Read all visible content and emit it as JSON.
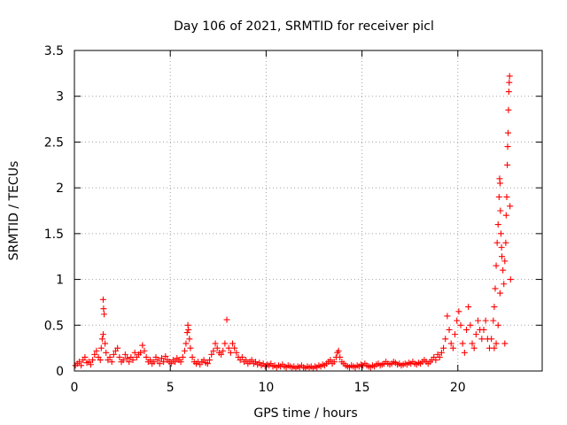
{
  "chart_data": {
    "type": "scatter",
    "title": "Day 106 of 2021, SRMTID for receiver picl",
    "xlabel": "GPS time / hours",
    "ylabel": "SRMTID / TECUs",
    "xlim": [
      0,
      24.4
    ],
    "ylim": [
      0,
      3.5
    ],
    "xticks": [
      0,
      5,
      10,
      15,
      20
    ],
    "yticks": [
      0,
      0.5,
      1,
      1.5,
      2,
      2.5,
      3,
      3.5
    ],
    "xtick_labels": [
      "0",
      "5",
      "10",
      "15",
      "20"
    ],
    "ytick_labels": [
      "0",
      "0.5",
      "1",
      "1.5",
      "2",
      "2.5",
      "3",
      "3.5"
    ],
    "grid": true,
    "marker": "+",
    "color": "#ff0000",
    "series": [
      {
        "name": "SRMTID",
        "points": [
          [
            0.05,
            0.06
          ],
          [
            0.15,
            0.08
          ],
          [
            0.25,
            0.1
          ],
          [
            0.35,
            0.06
          ],
          [
            0.45,
            0.12
          ],
          [
            0.55,
            0.15
          ],
          [
            0.65,
            0.09
          ],
          [
            0.75,
            0.1
          ],
          [
            0.85,
            0.07
          ],
          [
            0.95,
            0.12
          ],
          [
            1.05,
            0.18
          ],
          [
            1.15,
            0.22
          ],
          [
            1.25,
            0.15
          ],
          [
            1.35,
            0.12
          ],
          [
            1.4,
            0.25
          ],
          [
            1.45,
            0.35
          ],
          [
            1.5,
            0.4
          ],
          [
            1.5,
            0.78
          ],
          [
            1.52,
            0.68
          ],
          [
            1.55,
            0.62
          ],
          [
            1.6,
            0.3
          ],
          [
            1.65,
            0.2
          ],
          [
            1.75,
            0.12
          ],
          [
            1.85,
            0.15
          ],
          [
            1.95,
            0.1
          ],
          [
            2.05,
            0.18
          ],
          [
            2.15,
            0.22
          ],
          [
            2.25,
            0.25
          ],
          [
            2.35,
            0.15
          ],
          [
            2.45,
            0.1
          ],
          [
            2.55,
            0.12
          ],
          [
            2.65,
            0.18
          ],
          [
            2.75,
            0.14
          ],
          [
            2.85,
            0.1
          ],
          [
            2.95,
            0.15
          ],
          [
            3.05,
            0.12
          ],
          [
            3.15,
            0.2
          ],
          [
            3.25,
            0.15
          ],
          [
            3.35,
            0.18
          ],
          [
            3.45,
            0.2
          ],
          [
            3.55,
            0.28
          ],
          [
            3.65,
            0.22
          ],
          [
            3.75,
            0.15
          ],
          [
            3.85,
            0.1
          ],
          [
            3.95,
            0.12
          ],
          [
            4.05,
            0.08
          ],
          [
            4.15,
            0.1
          ],
          [
            4.25,
            0.15
          ],
          [
            4.35,
            0.12
          ],
          [
            4.45,
            0.08
          ],
          [
            4.55,
            0.14
          ],
          [
            4.65,
            0.1
          ],
          [
            4.75,
            0.16
          ],
          [
            4.85,
            0.12
          ],
          [
            4.95,
            0.1
          ],
          [
            5.05,
            0.08
          ],
          [
            5.15,
            0.12
          ],
          [
            5.25,
            0.1
          ],
          [
            5.35,
            0.14
          ],
          [
            5.45,
            0.12
          ],
          [
            5.55,
            0.1
          ],
          [
            5.65,
            0.15
          ],
          [
            5.75,
            0.22
          ],
          [
            5.82,
            0.3
          ],
          [
            5.88,
            0.42
          ],
          [
            5.92,
            0.5
          ],
          [
            5.95,
            0.45
          ],
          [
            6.0,
            0.35
          ],
          [
            6.05,
            0.25
          ],
          [
            6.15,
            0.15
          ],
          [
            6.25,
            0.1
          ],
          [
            6.35,
            0.08
          ],
          [
            6.45,
            0.1
          ],
          [
            6.55,
            0.07
          ],
          [
            6.65,
            0.1
          ],
          [
            6.75,
            0.12
          ],
          [
            6.85,
            0.09
          ],
          [
            6.95,
            0.08
          ],
          [
            7.05,
            0.12
          ],
          [
            7.15,
            0.18
          ],
          [
            7.25,
            0.22
          ],
          [
            7.35,
            0.3
          ],
          [
            7.45,
            0.25
          ],
          [
            7.55,
            0.2
          ],
          [
            7.65,
            0.18
          ],
          [
            7.75,
            0.22
          ],
          [
            7.85,
            0.3
          ],
          [
            7.95,
            0.56
          ],
          [
            8.05,
            0.25
          ],
          [
            8.15,
            0.2
          ],
          [
            8.25,
            0.3
          ],
          [
            8.35,
            0.25
          ],
          [
            8.45,
            0.2
          ],
          [
            8.55,
            0.15
          ],
          [
            8.65,
            0.12
          ],
          [
            8.75,
            0.15
          ],
          [
            8.85,
            0.1
          ],
          [
            8.95,
            0.12
          ],
          [
            9.05,
            0.08
          ],
          [
            9.15,
            0.1
          ],
          [
            9.25,
            0.12
          ],
          [
            9.35,
            0.08
          ],
          [
            9.45,
            0.1
          ],
          [
            9.55,
            0.07
          ],
          [
            9.65,
            0.09
          ],
          [
            9.75,
            0.06
          ],
          [
            9.85,
            0.08
          ],
          [
            9.95,
            0.05
          ],
          [
            10.05,
            0.07
          ],
          [
            10.15,
            0.06
          ],
          [
            10.25,
            0.08
          ],
          [
            10.35,
            0.05
          ],
          [
            10.45,
            0.06
          ],
          [
            10.55,
            0.04
          ],
          [
            10.65,
            0.06
          ],
          [
            10.75,
            0.05
          ],
          [
            10.85,
            0.07
          ],
          [
            10.95,
            0.05
          ],
          [
            11.05,
            0.04
          ],
          [
            11.15,
            0.06
          ],
          [
            11.25,
            0.05
          ],
          [
            11.35,
            0.04
          ],
          [
            11.45,
            0.05
          ],
          [
            11.55,
            0.03
          ],
          [
            11.65,
            0.05
          ],
          [
            11.75,
            0.04
          ],
          [
            11.85,
            0.06
          ],
          [
            11.95,
            0.04
          ],
          [
            12.05,
            0.03
          ],
          [
            12.15,
            0.05
          ],
          [
            12.25,
            0.04
          ],
          [
            12.35,
            0.05
          ],
          [
            12.45,
            0.03
          ],
          [
            12.55,
            0.05
          ],
          [
            12.65,
            0.04
          ],
          [
            12.75,
            0.06
          ],
          [
            12.85,
            0.05
          ],
          [
            12.95,
            0.07
          ],
          [
            13.05,
            0.06
          ],
          [
            13.15,
            0.08
          ],
          [
            13.25,
            0.1
          ],
          [
            13.35,
            0.12
          ],
          [
            13.45,
            0.08
          ],
          [
            13.55,
            0.1
          ],
          [
            13.65,
            0.15
          ],
          [
            13.72,
            0.2
          ],
          [
            13.78,
            0.22
          ],
          [
            13.85,
            0.15
          ],
          [
            13.95,
            0.1
          ],
          [
            14.05,
            0.08
          ],
          [
            14.15,
            0.06
          ],
          [
            14.25,
            0.05
          ],
          [
            14.35,
            0.04
          ],
          [
            14.45,
            0.06
          ],
          [
            14.55,
            0.05
          ],
          [
            14.65,
            0.04
          ],
          [
            14.75,
            0.06
          ],
          [
            14.85,
            0.05
          ],
          [
            14.95,
            0.07
          ],
          [
            15.05,
            0.06
          ],
          [
            15.15,
            0.08
          ],
          [
            15.25,
            0.06
          ],
          [
            15.35,
            0.05
          ],
          [
            15.45,
            0.04
          ],
          [
            15.55,
            0.06
          ],
          [
            15.65,
            0.05
          ],
          [
            15.75,
            0.07
          ],
          [
            15.85,
            0.08
          ],
          [
            15.95,
            0.06
          ],
          [
            16.05,
            0.07
          ],
          [
            16.15,
            0.08
          ],
          [
            16.25,
            0.1
          ],
          [
            16.35,
            0.08
          ],
          [
            16.45,
            0.07
          ],
          [
            16.55,
            0.08
          ],
          [
            16.65,
            0.1
          ],
          [
            16.75,
            0.09
          ],
          [
            16.85,
            0.07
          ],
          [
            16.95,
            0.08
          ],
          [
            17.05,
            0.06
          ],
          [
            17.15,
            0.07
          ],
          [
            17.25,
            0.08
          ],
          [
            17.35,
            0.07
          ],
          [
            17.45,
            0.09
          ],
          [
            17.55,
            0.08
          ],
          [
            17.65,
            0.1
          ],
          [
            17.75,
            0.08
          ],
          [
            17.85,
            0.07
          ],
          [
            17.95,
            0.09
          ],
          [
            18.05,
            0.08
          ],
          [
            18.15,
            0.1
          ],
          [
            18.25,
            0.12
          ],
          [
            18.35,
            0.1
          ],
          [
            18.45,
            0.08
          ],
          [
            18.55,
            0.1
          ],
          [
            18.65,
            0.12
          ],
          [
            18.75,
            0.15
          ],
          [
            18.85,
            0.12
          ],
          [
            18.95,
            0.18
          ],
          [
            19.05,
            0.15
          ],
          [
            19.15,
            0.2
          ],
          [
            19.25,
            0.25
          ],
          [
            19.35,
            0.35
          ],
          [
            19.45,
            0.6
          ],
          [
            19.55,
            0.45
          ],
          [
            19.65,
            0.3
          ],
          [
            19.75,
            0.25
          ],
          [
            19.85,
            0.4
          ],
          [
            19.95,
            0.55
          ],
          [
            20.05,
            0.65
          ],
          [
            20.15,
            0.5
          ],
          [
            20.25,
            0.3
          ],
          [
            20.35,
            0.2
          ],
          [
            20.45,
            0.45
          ],
          [
            20.55,
            0.7
          ],
          [
            20.65,
            0.5
          ],
          [
            20.75,
            0.3
          ],
          [
            20.85,
            0.25
          ],
          [
            20.95,
            0.4
          ],
          [
            21.05,
            0.55
          ],
          [
            21.15,
            0.45
          ],
          [
            21.25,
            0.35
          ],
          [
            21.35,
            0.45
          ],
          [
            21.45,
            0.55
          ],
          [
            21.55,
            0.35
          ],
          [
            21.65,
            0.25
          ],
          [
            21.75,
            0.35
          ],
          [
            21.85,
            0.55
          ],
          [
            21.9,
            0.7
          ],
          [
            21.95,
            0.9
          ],
          [
            22.0,
            1.15
          ],
          [
            22.05,
            1.4
          ],
          [
            22.1,
            1.6
          ],
          [
            22.15,
            1.9
          ],
          [
            22.18,
            2.1
          ],
          [
            22.2,
            2.05
          ],
          [
            22.22,
            1.75
          ],
          [
            22.25,
            1.5
          ],
          [
            22.28,
            1.35
          ],
          [
            22.3,
            1.25
          ],
          [
            22.35,
            1.1
          ],
          [
            22.4,
            0.95
          ],
          [
            22.45,
            1.2
          ],
          [
            22.5,
            1.4
          ],
          [
            22.52,
            1.7
          ],
          [
            22.55,
            1.9
          ],
          [
            22.58,
            2.25
          ],
          [
            22.6,
            2.45
          ],
          [
            22.62,
            2.6
          ],
          [
            22.64,
            2.85
          ],
          [
            22.66,
            3.05
          ],
          [
            22.68,
            3.15
          ],
          [
            22.7,
            3.22
          ],
          [
            22.72,
            1.8
          ],
          [
            22.75,
            1.0
          ],
          [
            22.45,
            0.3
          ],
          [
            22.2,
            0.85
          ],
          [
            22.1,
            0.5
          ],
          [
            22.0,
            0.3
          ],
          [
            21.9,
            0.25
          ]
        ]
      }
    ]
  }
}
